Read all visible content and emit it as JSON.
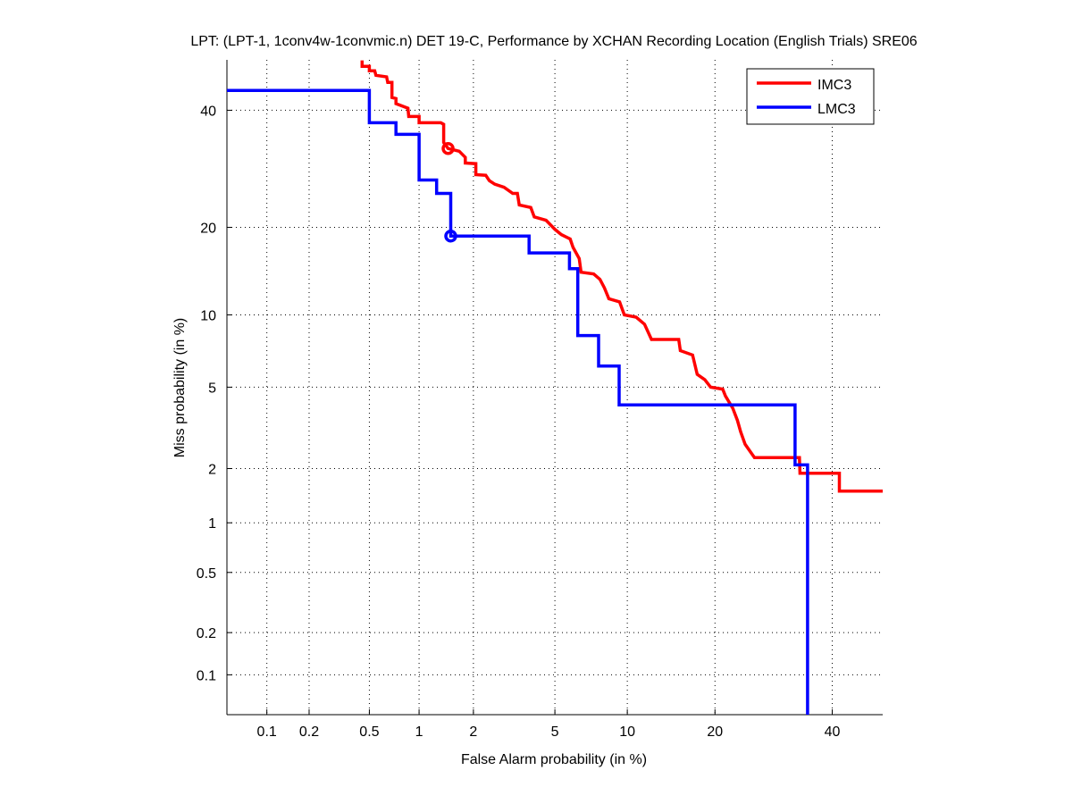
{
  "chart_data": {
    "type": "line",
    "title": "LPT: (LPT-1, 1conv4w-1convmic.n) DET 19-C,  Performance by XCHAN Recording Location (English Trials) SRE06",
    "xlabel": "False Alarm probability (in %)",
    "ylabel": "Miss probability (in %)",
    "xscale": "probit",
    "yscale": "probit",
    "xlim": [
      0.05,
      50
    ],
    "ylim": [
      0.05,
      50
    ],
    "grid": true,
    "xticks": [
      0.1,
      0.2,
      0.5,
      1,
      2,
      5,
      10,
      20,
      40
    ],
    "xtick_labels": [
      "0.1",
      "0.2",
      "0.5",
      "1",
      "2",
      "5",
      "10",
      "20",
      "40"
    ],
    "yticks": [
      0.1,
      0.2,
      0.5,
      1,
      2,
      5,
      10,
      20,
      40
    ],
    "ytick_labels": [
      "0.1",
      "0.2",
      "0.5",
      "1",
      "2",
      "5",
      "10",
      "20",
      "40"
    ],
    "legend_placement": "top-right",
    "series": [
      {
        "name": "IMC3",
        "color": "#ff0000",
        "marker_point": [
          1.46,
          32.8
        ],
        "points": [
          [
            0.45,
            49.9
          ],
          [
            0.45,
            48.7
          ],
          [
            0.5,
            48.7
          ],
          [
            0.5,
            47.8
          ],
          [
            0.54,
            47.8
          ],
          [
            0.55,
            46.9
          ],
          [
            0.64,
            46.6
          ],
          [
            0.65,
            45.5
          ],
          [
            0.69,
            45.5
          ],
          [
            0.69,
            42.5
          ],
          [
            0.73,
            42.3
          ],
          [
            0.73,
            41.3
          ],
          [
            0.86,
            40.4
          ],
          [
            0.87,
            38.8
          ],
          [
            1.0,
            38.8
          ],
          [
            1.0,
            37.6
          ],
          [
            1.33,
            37.6
          ],
          [
            1.38,
            37.3
          ],
          [
            1.38,
            33.9
          ],
          [
            1.46,
            32.8
          ],
          [
            1.68,
            32.3
          ],
          [
            1.81,
            31.2
          ],
          [
            1.81,
            30.2
          ],
          [
            2.06,
            30.1
          ],
          [
            2.06,
            28.2
          ],
          [
            2.32,
            28.1
          ],
          [
            2.42,
            27.2
          ],
          [
            2.58,
            26.6
          ],
          [
            2.87,
            26.1
          ],
          [
            3.17,
            25.1
          ],
          [
            3.34,
            25.1
          ],
          [
            3.41,
            23.3
          ],
          [
            3.87,
            22.9
          ],
          [
            4.02,
            21.5
          ],
          [
            4.56,
            21.0
          ],
          [
            5.01,
            19.7
          ],
          [
            5.34,
            19.0
          ],
          [
            5.84,
            18.4
          ],
          [
            6.01,
            17.3
          ],
          [
            6.39,
            15.9
          ],
          [
            6.51,
            14.3
          ],
          [
            7.35,
            14.1
          ],
          [
            7.8,
            13.5
          ],
          [
            8.13,
            12.6
          ],
          [
            8.47,
            11.5
          ],
          [
            9.34,
            11.2
          ],
          [
            9.74,
            10.0
          ],
          [
            10.8,
            9.8
          ],
          [
            11.6,
            9.2
          ],
          [
            12.3,
            8.0
          ],
          [
            15.3,
            8.0
          ],
          [
            15.5,
            7.2
          ],
          [
            17.0,
            6.9
          ],
          [
            17.6,
            5.7
          ],
          [
            18.6,
            5.4
          ],
          [
            19.4,
            5.0
          ],
          [
            21.1,
            4.9
          ],
          [
            21.5,
            4.56
          ],
          [
            22.6,
            4.0
          ],
          [
            23.3,
            3.5
          ],
          [
            23.8,
            3.08
          ],
          [
            24.5,
            2.67
          ],
          [
            26.0,
            2.28
          ],
          [
            33.8,
            2.28
          ],
          [
            33.9,
            1.89
          ],
          [
            41.4,
            1.89
          ],
          [
            41.4,
            1.51
          ],
          [
            50,
            1.51
          ]
        ]
      },
      {
        "name": "LMC3",
        "color": "#0000ff",
        "marker_point": [
          1.51,
          18.8
        ],
        "points": [
          [
            0.05,
            43.9
          ],
          [
            0.5,
            43.9
          ],
          [
            0.5,
            37.6
          ],
          [
            0.73,
            37.6
          ],
          [
            0.73,
            35.4
          ],
          [
            1.0,
            35.4
          ],
          [
            1.0,
            27.3
          ],
          [
            1.26,
            27.3
          ],
          [
            1.26,
            25.1
          ],
          [
            1.51,
            25.1
          ],
          [
            1.51,
            18.8
          ],
          [
            3.8,
            18.8
          ],
          [
            3.8,
            16.6
          ],
          [
            5.8,
            16.6
          ],
          [
            5.8,
            14.7
          ],
          [
            6.3,
            14.7
          ],
          [
            6.3,
            8.3
          ],
          [
            7.7,
            8.3
          ],
          [
            7.7,
            6.2
          ],
          [
            9.3,
            6.2
          ],
          [
            9.3,
            4.15
          ],
          [
            33,
            4.15
          ],
          [
            33,
            2.09
          ],
          [
            35.3,
            2.09
          ],
          [
            35.3,
            0.05
          ]
        ]
      }
    ]
  }
}
